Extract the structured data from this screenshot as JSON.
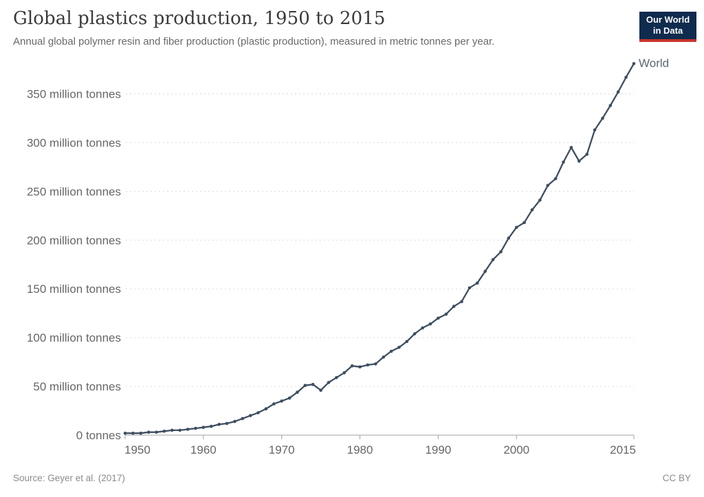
{
  "header": {
    "title": "Global plastics production, 1950 to 2015",
    "subtitle": "Annual global polymer resin and fiber production (plastic production), measured in metric tonnes per year."
  },
  "logo": {
    "line1": "Our World",
    "line2": "in Data",
    "bg_color": "#0f2b4d",
    "bar_color": "#c7352b"
  },
  "footer": {
    "source": "Source: Geyer et al. (2017)",
    "license": "CC BY"
  },
  "chart_data": {
    "type": "line",
    "title": "Global plastics production, 1950 to 2015",
    "xlabel": "",
    "ylabel": "",
    "unit": "million tonnes",
    "xlim": [
      1950,
      2015
    ],
    "ylim": [
      0,
      381
    ],
    "grid": "horizontal-dashed",
    "legend_position": "end-of-line-label",
    "x_label_ticks": [
      1950,
      1960,
      1970,
      1980,
      1990,
      2000,
      2015
    ],
    "y_ticks": [
      {
        "value": 0,
        "label": "0 tonnes"
      },
      {
        "value": 50,
        "label": "50 million tonnes"
      },
      {
        "value": 100,
        "label": "100 million tonnes"
      },
      {
        "value": 150,
        "label": "150 million tonnes"
      },
      {
        "value": 200,
        "label": "200 million tonnes"
      },
      {
        "value": 250,
        "label": "250 million tonnes"
      },
      {
        "value": 300,
        "label": "300 million tonnes"
      },
      {
        "value": 350,
        "label": "350 million tonnes"
      }
    ],
    "series": [
      {
        "name": "World",
        "color": "#3e4e61",
        "x": [
          1950,
          1951,
          1952,
          1953,
          1954,
          1955,
          1956,
          1957,
          1958,
          1959,
          1960,
          1961,
          1962,
          1963,
          1964,
          1965,
          1966,
          1967,
          1968,
          1969,
          1970,
          1971,
          1972,
          1973,
          1974,
          1975,
          1976,
          1977,
          1978,
          1979,
          1980,
          1981,
          1982,
          1983,
          1984,
          1985,
          1986,
          1987,
          1988,
          1989,
          1990,
          1991,
          1992,
          1993,
          1994,
          1995,
          1996,
          1997,
          1998,
          1999,
          2000,
          2001,
          2002,
          2003,
          2004,
          2005,
          2006,
          2007,
          2008,
          2009,
          2010,
          2011,
          2012,
          2013,
          2014,
          2015
        ],
        "values": [
          2,
          2,
          2,
          3,
          3,
          4,
          5,
          5,
          6,
          7,
          8,
          9,
          11,
          12,
          14,
          17,
          20,
          23,
          27,
          32,
          35,
          38,
          44,
          51,
          52,
          46,
          54,
          59,
          64,
          71,
          70,
          72,
          73,
          80,
          86,
          90,
          96,
          104,
          110,
          114,
          120,
          124,
          132,
          137,
          151,
          156,
          168,
          180,
          188,
          202,
          213,
          218,
          231,
          241,
          256,
          263,
          280,
          295,
          281,
          288,
          313,
          325,
          338,
          352,
          367,
          381
        ]
      }
    ]
  }
}
